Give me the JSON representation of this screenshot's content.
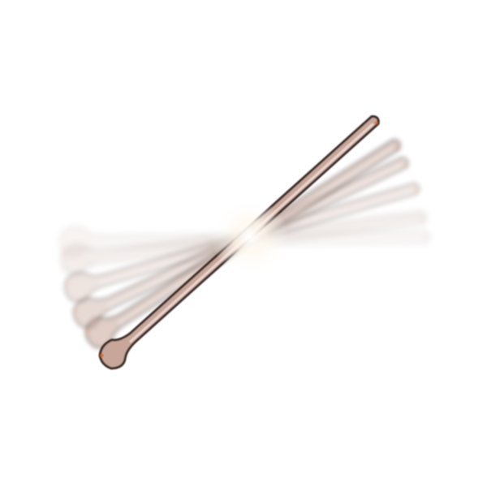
{
  "scene": {
    "subject": "swing-trail-sprite",
    "colors": {
      "background": "#ffffff",
      "shaft_fill": "#c8a79a",
      "shaft_fill_light": "#e9d6cf",
      "outline": "#3a2a25",
      "glint": "#fff4e0",
      "accent": "#d96b1f",
      "highlight": "#ffffff"
    },
    "trail_frames": [
      {
        "name": "frame-1",
        "opacity": 0.12
      },
      {
        "name": "frame-2",
        "opacity": 0.2
      },
      {
        "name": "frame-3",
        "opacity": 0.3
      },
      {
        "name": "frame-4",
        "opacity": 0.42
      },
      {
        "name": "frame-5",
        "opacity": 0.55
      },
      {
        "name": "frame-6",
        "opacity": 1.0
      }
    ]
  }
}
